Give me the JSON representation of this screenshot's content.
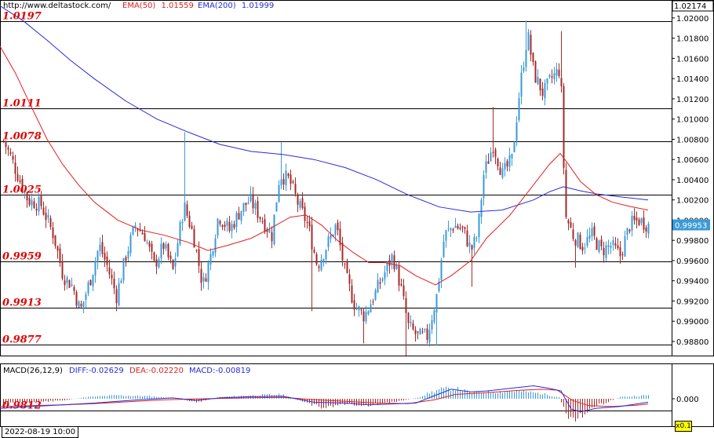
{
  "header": {
    "site": "http://www.deltastock.com/",
    "ema50_label": "EMA(50)",
    "ema50_value": "1.01559",
    "ema200_label": "EMA(200)",
    "ema200_value": "1.01999"
  },
  "macd_header": {
    "name": "MACD(26,12,9)",
    "diff_label": "DIFF:",
    "diff_value": "-0.02629",
    "dea_label": "DEA:",
    "dea_value": "-0.02220",
    "macd_label": "MACD:",
    "macd_value": "-0.00819"
  },
  "footer": {
    "date": "2022-08-19 10:00",
    "scale": "x0.1"
  },
  "colors": {
    "up": "#3a9ad9",
    "down": "#a52a2a",
    "ema50": "#e02020",
    "ema200": "#2a2ad8",
    "level_text": "#e00000",
    "current_price_bg": "#3a9ad9"
  },
  "chart_data": [
    {
      "type": "candlestick",
      "instrument": "EUR/USD",
      "ylim": [
        0.9866,
        1.0217
      ],
      "yticks": [
        "1.02000",
        "1.01800",
        "1.01600",
        "1.01400",
        "1.01200",
        "1.01000",
        "1.00800",
        "1.00600",
        "1.00400",
        "1.00200",
        "1.00000",
        "0.99800",
        "0.99600",
        "0.99400",
        "0.99200",
        "0.99000",
        "0.98800"
      ],
      "top_price": "1.02174",
      "current_price": "0.99953",
      "levels": [
        "1.0197",
        "1.0111",
        "1.0078",
        "1.0025",
        "0.9959",
        "0.9913",
        "0.9877",
        "0.9812"
      ],
      "close_path": [
        [
          0,
          1.0085
        ],
        [
          12,
          1.0065
        ],
        [
          22,
          1.0045
        ],
        [
          35,
          1.002
        ],
        [
          52,
          1.0015
        ],
        [
          68,
          0.9985
        ],
        [
          80,
          0.9945
        ],
        [
          92,
          0.9935
        ],
        [
          102,
          0.991
        ],
        [
          116,
          0.9945
        ],
        [
          126,
          0.9975
        ],
        [
          136,
          0.9955
        ],
        [
          148,
          0.9925
        ],
        [
          160,
          0.9965
        ],
        [
          172,
          0.9995
        ],
        [
          184,
          0.9985
        ],
        [
          196,
          0.9955
        ],
        [
          208,
          0.9975
        ],
        [
          220,
          0.995
        ],
        [
          234,
          1.0015
        ],
        [
          246,
          0.9985
        ],
        [
          258,
          0.9935
        ],
        [
          268,
          0.9965
        ],
        [
          278,
          1.0005
        ],
        [
          292,
          0.999
        ],
        [
          306,
          1.001
        ],
        [
          318,
          1.002
        ],
        [
          330,
          1.0005
        ],
        [
          346,
          0.9985
        ],
        [
          356,
          1.0045
        ],
        [
          368,
          1.004
        ],
        [
          380,
          1.0015
        ],
        [
          392,
          0.9995
        ],
        [
          404,
          0.9955
        ],
        [
          416,
          0.9975
        ],
        [
          428,
          0.9995
        ],
        [
          440,
          0.9945
        ],
        [
          452,
          0.9915
        ],
        [
          464,
          0.9905
        ],
        [
          476,
          0.9925
        ],
        [
          488,
          0.9945
        ],
        [
          500,
          0.9965
        ],
        [
          510,
          0.9935
        ],
        [
          520,
          0.9895
        ],
        [
          532,
          0.9885
        ],
        [
          544,
          0.9885
        ],
        [
          556,
          0.9925
        ],
        [
          566,
          0.9985
        ],
        [
          578,
          0.9995
        ],
        [
          590,
          0.999
        ],
        [
          600,
          0.997
        ],
        [
          608,
          0.9985
        ],
        [
          616,
          1.0045
        ],
        [
          628,
          1.0075
        ],
        [
          640,
          1.0045
        ],
        [
          652,
          1.006
        ],
        [
          662,
          1.013
        ],
        [
          672,
          1.0185
        ],
        [
          680,
          1.0145
        ],
        [
          692,
          1.0125
        ],
        [
          702,
          1.014
        ],
        [
          714,
          1.015
        ],
        [
          720,
          1.0005
        ],
        [
          730,
          0.9985
        ],
        [
          742,
          0.9975
        ],
        [
          754,
          0.9985
        ],
        [
          766,
          0.997
        ],
        [
          778,
          0.9975
        ],
        [
          790,
          0.9965
        ],
        [
          802,
          0.9995
        ],
        [
          814,
          1.0
        ],
        [
          826,
          0.9995
        ]
      ],
      "spikes": [
        {
          "x": 235,
          "high": 1.0087
        },
        {
          "x": 359,
          "high": 1.0077
        },
        {
          "x": 397,
          "low": 0.991
        },
        {
          "x": 464,
          "low": 0.9878
        },
        {
          "x": 518,
          "low": 0.9866
        },
        {
          "x": 556,
          "low": 0.9876
        },
        {
          "x": 600,
          "low": 0.9934
        },
        {
          "x": 628,
          "high": 1.0112
        },
        {
          "x": 671,
          "high": 1.0197
        },
        {
          "x": 716,
          "high": 1.0187
        },
        {
          "x": 734,
          "low": 0.9953
        }
      ],
      "ema50": [
        [
          0,
          1.0172
        ],
        [
          20,
          1.0145
        ],
        [
          40,
          1.0112
        ],
        [
          60,
          1.008
        ],
        [
          80,
          1.0055
        ],
        [
          100,
          1.0035
        ],
        [
          120,
          1.0018
        ],
        [
          150,
          1.0
        ],
        [
          180,
          0.999
        ],
        [
          210,
          0.9985
        ],
        [
          240,
          0.9978
        ],
        [
          265,
          0.997
        ],
        [
          290,
          0.9975
        ],
        [
          320,
          0.9982
        ],
        [
          345,
          0.9992
        ],
        [
          370,
          1.0003
        ],
        [
          390,
          1.0005
        ],
        [
          410,
          0.9995
        ],
        [
          430,
          0.998
        ],
        [
          450,
          0.9968
        ],
        [
          470,
          0.9958
        ],
        [
          490,
          0.9958
        ],
        [
          510,
          0.9955
        ],
        [
          530,
          0.9945
        ],
        [
          555,
          0.9936
        ],
        [
          575,
          0.9945
        ],
        [
          600,
          0.996
        ],
        [
          620,
          0.9982
        ],
        [
          650,
          1.0005
        ],
        [
          680,
          1.0035
        ],
        [
          700,
          1.0055
        ],
        [
          714,
          1.0066
        ],
        [
          722,
          1.0058
        ],
        [
          740,
          1.0038
        ],
        [
          760,
          1.0025
        ],
        [
          780,
          1.0018
        ],
        [
          800,
          1.0014
        ],
        [
          826,
          1.001
        ]
      ],
      "ema200": [
        [
          0,
          1.0212
        ],
        [
          30,
          1.0197
        ],
        [
          60,
          1.0178
        ],
        [
          90,
          1.0158
        ],
        [
          120,
          1.014
        ],
        [
          160,
          1.0118
        ],
        [
          200,
          1.01
        ],
        [
          240,
          1.0087
        ],
        [
          280,
          1.0075
        ],
        [
          320,
          1.0068
        ],
        [
          360,
          1.0065
        ],
        [
          400,
          1.006
        ],
        [
          440,
          1.0052
        ],
        [
          480,
          1.004
        ],
        [
          520,
          1.0025
        ],
        [
          560,
          1.0013
        ],
        [
          600,
          1.0008
        ],
        [
          640,
          1.001
        ],
        [
          680,
          1.002
        ],
        [
          700,
          1.0028
        ],
        [
          718,
          1.0033
        ],
        [
          740,
          1.0029
        ],
        [
          760,
          1.0026
        ],
        [
          790,
          1.0023
        ],
        [
          826,
          1.002
        ]
      ]
    },
    {
      "type": "histogram+line",
      "name": "MACD(26,12,9)",
      "ytick": "0.000",
      "diff_path": [
        [
          0,
          -0.55
        ],
        [
          40,
          -0.45
        ],
        [
          80,
          -0.35
        ],
        [
          120,
          -0.25
        ],
        [
          150,
          -0.15
        ],
        [
          180,
          -0.05
        ],
        [
          220,
          0.05
        ],
        [
          250,
          -0.1
        ],
        [
          280,
          0.05
        ],
        [
          320,
          0.12
        ],
        [
          360,
          0.15
        ],
        [
          400,
          -0.2
        ],
        [
          440,
          -0.25
        ],
        [
          470,
          -0.35
        ],
        [
          500,
          -0.3
        ],
        [
          530,
          -0.25
        ],
        [
          555,
          0.2
        ],
        [
          575,
          0.55
        ],
        [
          600,
          0.4
        ],
        [
          620,
          0.45
        ],
        [
          650,
          0.6
        ],
        [
          680,
          0.75
        ],
        [
          700,
          0.6
        ],
        [
          715,
          0.45
        ],
        [
          728,
          -0.6
        ],
        [
          740,
          -0.75
        ],
        [
          760,
          -0.55
        ],
        [
          790,
          -0.45
        ],
        [
          826,
          -0.2
        ]
      ],
      "dea_path": [
        [
          0,
          -0.45
        ],
        [
          40,
          -0.4
        ],
        [
          80,
          -0.35
        ],
        [
          120,
          -0.28
        ],
        [
          160,
          -0.18
        ],
        [
          200,
          -0.08
        ],
        [
          240,
          -0.02
        ],
        [
          280,
          0.02
        ],
        [
          320,
          0.06
        ],
        [
          360,
          0.08
        ],
        [
          400,
          -0.05
        ],
        [
          440,
          -0.15
        ],
        [
          480,
          -0.25
        ],
        [
          520,
          -0.28
        ],
        [
          555,
          -0.05
        ],
        [
          580,
          0.25
        ],
        [
          620,
          0.35
        ],
        [
          660,
          0.48
        ],
        [
          690,
          0.55
        ],
        [
          710,
          0.5
        ],
        [
          730,
          -0.1
        ],
        [
          750,
          -0.4
        ],
        [
          780,
          -0.45
        ],
        [
          810,
          -0.38
        ],
        [
          826,
          -0.3
        ]
      ],
      "hist_path": [
        [
          0,
          -0.3
        ],
        [
          40,
          -0.2
        ],
        [
          80,
          -0.1
        ],
        [
          110,
          0.1
        ],
        [
          150,
          0.2
        ],
        [
          190,
          0.15
        ],
        [
          220,
          0.05
        ],
        [
          250,
          -0.2
        ],
        [
          280,
          0.1
        ],
        [
          320,
          0.2
        ],
        [
          360,
          0.25
        ],
        [
          390,
          -0.25
        ],
        [
          410,
          -0.5
        ],
        [
          440,
          -0.3
        ],
        [
          470,
          -0.4
        ],
        [
          500,
          -0.2
        ],
        [
          530,
          0.05
        ],
        [
          560,
          0.55
        ],
        [
          580,
          0.6
        ],
        [
          600,
          0.35
        ],
        [
          630,
          0.4
        ],
        [
          660,
          0.45
        ],
        [
          690,
          0.3
        ],
        [
          712,
          0.1
        ],
        [
          722,
          -0.95
        ],
        [
          735,
          -1.1
        ],
        [
          755,
          -0.5
        ],
        [
          790,
          0.1
        ],
        [
          826,
          0.2
        ]
      ]
    }
  ]
}
